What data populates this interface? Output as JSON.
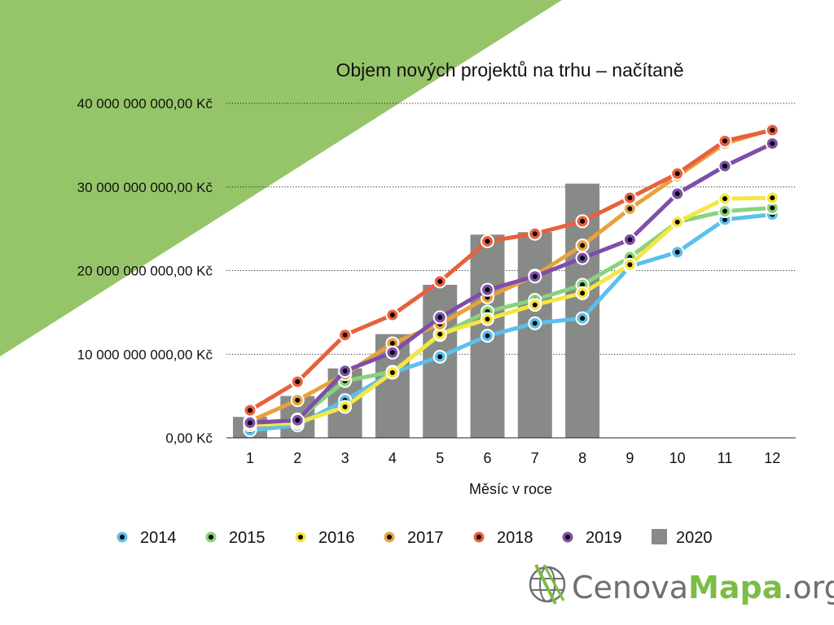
{
  "colors": {
    "corner": "#96c569",
    "bars": "#888a88",
    "grid": "#222222",
    "logo_dark": "#6f6f6f",
    "logo_green": "#7bbd45",
    "dot": "#000000"
  },
  "chart_data": {
    "type": "line",
    "title": "Objem nových projektů na trhu – načítaně",
    "xlabel": "Měsíc v roce",
    "ylabel": "",
    "categories": [
      "1",
      "2",
      "3",
      "4",
      "5",
      "6",
      "7",
      "8",
      "9",
      "10",
      "11",
      "12"
    ],
    "yticks": [
      "0,00 Kč",
      "10 000 000 000,00 Kč",
      "20 000 000 000,00 Kč",
      "30 000 000 000,00 Kč",
      "40 000 000 000,00 Kč"
    ],
    "ylim": [
      0,
      40000000000
    ],
    "grid": true,
    "legend_position": "bottom",
    "bar_series": {
      "name": "2020",
      "color": "#888a88",
      "values": [
        2500000000,
        5000000000,
        8300000000,
        12400000000,
        18300000000,
        24300000000,
        24600000000,
        30400000000
      ]
    },
    "series": [
      {
        "name": "2014",
        "color": "#5bc0eb",
        "values": [
          900000000,
          1500000000,
          4500000000,
          7800000000,
          9700000000,
          12200000000,
          13700000000,
          14300000000,
          20500000000,
          22200000000,
          26100000000,
          26700000000
        ]
      },
      {
        "name": "2015",
        "color": "#88d37b",
        "values": [
          1600000000,
          2200000000,
          6800000000,
          7900000000,
          12300000000,
          15100000000,
          16500000000,
          18300000000,
          21600000000,
          25800000000,
          27100000000,
          27500000000
        ]
      },
      {
        "name": "2016",
        "color": "#f5e642",
        "values": [
          1500000000,
          1800000000,
          3700000000,
          7800000000,
          12400000000,
          14200000000,
          15900000000,
          17300000000,
          20700000000,
          25800000000,
          28600000000,
          28700000000
        ]
      },
      {
        "name": "2017",
        "color": "#e8a23c",
        "values": [
          2000000000,
          4500000000,
          7600000000,
          11300000000,
          13600000000,
          16800000000,
          19400000000,
          23000000000,
          27400000000,
          31300000000,
          35200000000,
          36900000000
        ]
      },
      {
        "name": "2018",
        "color": "#e8603c",
        "values": [
          3300000000,
          6700000000,
          12300000000,
          14700000000,
          18700000000,
          23500000000,
          24400000000,
          25900000000,
          28700000000,
          31600000000,
          35500000000,
          36800000000
        ]
      },
      {
        "name": "2019",
        "color": "#7d4fa8",
        "values": [
          1800000000,
          2100000000,
          8000000000,
          10200000000,
          14400000000,
          17700000000,
          19300000000,
          21500000000,
          23700000000,
          29200000000,
          32500000000,
          35200000000
        ]
      }
    ]
  },
  "logo": {
    "part1": "Cenova",
    "part2": "Mapa",
    "part3": ".org"
  }
}
